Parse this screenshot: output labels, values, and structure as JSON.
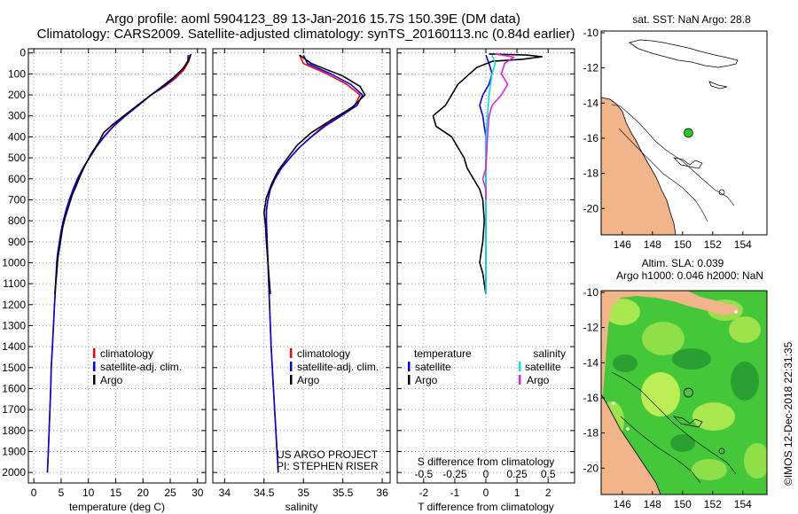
{
  "header": {
    "title_line1": "Argo profile: aoml 5904123_89 13-Jan-2016 15.7S 150.39E (DM data)",
    "title_line2": "Climatology: CARS2009. Satellite-adjusted climatology: synTS_20160113.nc (0.84d earlier)"
  },
  "footer": {
    "credit_line1": "US ARGO PROJECT",
    "credit_line2": "PI: STEPHEN RISER",
    "stamp": "©IMOS 12-Dec-2018 22:31:35"
  },
  "colors": {
    "climatology": "#ff0000",
    "satellite": "#0000ff",
    "argo": "#000000",
    "salinity_satellite": "#00e5e5",
    "salinity_argo": "#e020e0",
    "land": "#f2b48a",
    "dots": "#9a9a9a"
  },
  "legend_profiles": {
    "climatology": "climatology",
    "satellite": "satellite-adj. clim.",
    "argo": "Argo"
  },
  "legend_diff": {
    "temperature_head": "temperature",
    "salinity_head": "salinity",
    "satellite": "satellite",
    "argo": "Argo"
  },
  "maps": {
    "sst_title": "sat. SST: NaN Argo: 28.8",
    "sla_title1": "Altim. SLA: 0.039",
    "sla_title2": "Argo h1000: 0.046 h2000: NaN",
    "x_ticks": [
      146,
      148,
      150,
      152,
      154
    ],
    "y_ticks": [
      -10,
      -12,
      -14,
      -16,
      -18,
      -20
    ],
    "xlim": [
      144.6,
      155.6
    ],
    "ylim": [
      -21.5,
      -9.9
    ],
    "float_position": [
      150.39,
      -15.7
    ]
  },
  "chart_data": [
    {
      "type": "line",
      "xlabel": "temperature (deg C)",
      "ylabel": "",
      "xlim": [
        -1,
        31.5
      ],
      "ylim": [
        2050,
        -20
      ],
      "x_ticks": [
        0,
        5,
        10,
        15,
        20,
        25,
        30
      ],
      "y_ticks": [
        0,
        100,
        200,
        300,
        400,
        500,
        600,
        700,
        800,
        900,
        1000,
        1100,
        1200,
        1300,
        1400,
        1500,
        1600,
        1700,
        1800,
        1900,
        2000
      ],
      "grid": true,
      "series": [
        {
          "name": "climatology",
          "color": "#ff0000",
          "points": [
            [
              28.6,
              10
            ],
            [
              28.4,
              40
            ],
            [
              27.5,
              80
            ],
            [
              26,
              120
            ],
            [
              24,
              160
            ],
            [
              21.5,
              200
            ],
            [
              19,
              250
            ],
            [
              16.5,
              300
            ],
            [
              14.5,
              350
            ],
            [
              12.8,
              400
            ],
            [
              11.4,
              450
            ],
            [
              10.2,
              500
            ],
            [
              9,
              550
            ],
            [
              8,
              600
            ],
            [
              7.2,
              650
            ],
            [
              6.5,
              700
            ],
            [
              5.9,
              750
            ],
            [
              5.4,
              800
            ],
            [
              5,
              850
            ],
            [
              4.7,
              900
            ],
            [
              4.4,
              950
            ],
            [
              4.2,
              1000
            ],
            [
              4,
              1100
            ],
            [
              3.8,
              1200
            ],
            [
              3.6,
              1300
            ],
            [
              3.4,
              1400
            ],
            [
              3.2,
              1500
            ],
            [
              3.1,
              1600
            ],
            [
              2.95,
              1700
            ],
            [
              2.8,
              1800
            ],
            [
              2.65,
              1900
            ],
            [
              2.5,
              2000
            ]
          ]
        },
        {
          "name": "satellite-adj. clim.",
          "color": "#0000ff",
          "points": [
            [
              28.3,
              10
            ],
            [
              28.2,
              40
            ],
            [
              27.2,
              80
            ],
            [
              25.7,
              120
            ],
            [
              23.8,
              160
            ],
            [
              21.5,
              200
            ],
            [
              19.2,
              250
            ],
            [
              16.8,
              300
            ],
            [
              14.6,
              350
            ],
            [
              12.9,
              400
            ],
            [
              11.4,
              450
            ],
            [
              10.2,
              500
            ],
            [
              9,
              550
            ],
            [
              8,
              600
            ],
            [
              7.2,
              650
            ],
            [
              6.5,
              700
            ],
            [
              5.9,
              750
            ],
            [
              5.4,
              800
            ],
            [
              5,
              850
            ],
            [
              4.7,
              900
            ],
            [
              4.4,
              950
            ],
            [
              4.2,
              1000
            ],
            [
              4,
              1100
            ],
            [
              3.8,
              1200
            ],
            [
              3.6,
              1300
            ],
            [
              3.4,
              1400
            ],
            [
              3.2,
              1500
            ],
            [
              3.1,
              1600
            ],
            [
              2.95,
              1700
            ],
            [
              2.8,
              1800
            ],
            [
              2.65,
              1900
            ],
            [
              2.5,
              2000
            ]
          ]
        },
        {
          "name": "Argo",
          "color": "#000000",
          "points": [
            [
              28.8,
              5
            ],
            [
              28.5,
              30
            ],
            [
              27.5,
              70
            ],
            [
              25.5,
              120
            ],
            [
              23,
              170
            ],
            [
              20.5,
              220
            ],
            [
              17.5,
              280
            ],
            [
              14.5,
              340
            ],
            [
              12.8,
              380
            ],
            [
              11.8,
              430
            ],
            [
              10.5,
              480
            ],
            [
              9.5,
              530
            ],
            [
              8.6,
              580
            ],
            [
              7.8,
              630
            ],
            [
              7,
              680
            ],
            [
              6.4,
              730
            ],
            [
              5.8,
              780
            ],
            [
              5.3,
              830
            ],
            [
              5,
              880
            ],
            [
              4.7,
              930
            ],
            [
              4.4,
              980
            ],
            [
              4.2,
              1050
            ],
            [
              4,
              1100
            ],
            [
              3.85,
              1150
            ]
          ]
        }
      ]
    },
    {
      "type": "line",
      "xlabel": "salinity",
      "ylabel": "",
      "xlim": [
        33.85,
        36.1
      ],
      "ylim": [
        2050,
        -20
      ],
      "x_ticks": [
        34,
        34.5,
        35,
        35.5,
        36
      ],
      "y_ticks": [
        0,
        100,
        200,
        300,
        400,
        500,
        600,
        700,
        800,
        900,
        1000,
        1100,
        1200,
        1300,
        1400,
        1500,
        1600,
        1700,
        1800,
        1900,
        2000
      ],
      "grid": true,
      "series": [
        {
          "name": "climatology",
          "color": "#ff0000",
          "points": [
            [
              34.95,
              10
            ],
            [
              35.0,
              50
            ],
            [
              35.3,
              100
            ],
            [
              35.55,
              150
            ],
            [
              35.72,
              200
            ],
            [
              35.65,
              250
            ],
            [
              35.45,
              300
            ],
            [
              35.25,
              350
            ],
            [
              35.1,
              400
            ],
            [
              34.95,
              450
            ],
            [
              34.83,
              500
            ],
            [
              34.72,
              550
            ],
            [
              34.64,
              600
            ],
            [
              34.58,
              650
            ],
            [
              34.55,
              700
            ],
            [
              34.53,
              750
            ],
            [
              34.53,
              800
            ],
            [
              34.54,
              900
            ],
            [
              34.55,
              1000
            ],
            [
              34.57,
              1200
            ],
            [
              34.59,
              1400
            ],
            [
              34.62,
              1600
            ],
            [
              34.65,
              1800
            ],
            [
              34.68,
              2000
            ]
          ]
        },
        {
          "name": "satellite-adj. clim.",
          "color": "#0000ff",
          "points": [
            [
              35.0,
              10
            ],
            [
              35.05,
              50
            ],
            [
              35.35,
              100
            ],
            [
              35.6,
              150
            ],
            [
              35.75,
              200
            ],
            [
              35.68,
              250
            ],
            [
              35.48,
              300
            ],
            [
              35.27,
              350
            ],
            [
              35.1,
              400
            ],
            [
              34.95,
              450
            ],
            [
              34.83,
              500
            ],
            [
              34.72,
              550
            ],
            [
              34.64,
              600
            ],
            [
              34.58,
              650
            ],
            [
              34.55,
              700
            ],
            [
              34.53,
              750
            ],
            [
              34.53,
              800
            ],
            [
              34.54,
              900
            ],
            [
              34.55,
              1000
            ],
            [
              34.57,
              1200
            ],
            [
              34.59,
              1400
            ],
            [
              34.62,
              1600
            ],
            [
              34.65,
              1800
            ],
            [
              34.68,
              2000
            ]
          ]
        },
        {
          "name": "Argo",
          "color": "#000000",
          "points": [
            [
              34.95,
              10
            ],
            [
              35.1,
              50
            ],
            [
              35.5,
              110
            ],
            [
              35.72,
              160
            ],
            [
              35.78,
              200
            ],
            [
              35.62,
              260
            ],
            [
              35.35,
              320
            ],
            [
              35.1,
              380
            ],
            [
              34.92,
              440
            ],
            [
              34.8,
              500
            ],
            [
              34.68,
              560
            ],
            [
              34.6,
              620
            ],
            [
              34.53,
              690
            ],
            [
              34.5,
              760
            ],
            [
              34.52,
              830
            ],
            [
              34.53,
              900
            ],
            [
              34.55,
              1000
            ],
            [
              34.57,
              1100
            ],
            [
              34.58,
              1150
            ]
          ]
        }
      ]
    },
    {
      "type": "line",
      "xlabel": "T difference from climatology",
      "x2label": "S difference from climatology",
      "ylabel": "",
      "xlim": [
        -2.85,
        2.85
      ],
      "ylim": [
        2050,
        -20
      ],
      "x_ticks": [
        -2,
        -1,
        0,
        1,
        2
      ],
      "x_tick_labels": [
        "-2",
        "-1",
        "0",
        "1",
        "2"
      ],
      "x2_ticks": [
        -2,
        -1,
        0,
        1,
        2
      ],
      "x2_tick_labels": [
        "-0.5",
        "-0.25",
        "0",
        "0.25",
        "0.5"
      ],
      "y_ticks": [
        0,
        100,
        200,
        300,
        400,
        500,
        600,
        700,
        800,
        900,
        1000,
        1100,
        1200,
        1300,
        1400,
        1500,
        1600,
        1700,
        1800,
        1900,
        2000
      ],
      "grid": true,
      "series": [
        {
          "name": "temperature satellite",
          "color": "#0000ff",
          "points": [
            [
              0,
              10
            ],
            [
              0.1,
              50
            ],
            [
              0.2,
              100
            ],
            [
              0.1,
              150
            ],
            [
              -0.1,
              200
            ],
            [
              -0.2,
              250
            ],
            [
              -0.1,
              300
            ],
            [
              -0.05,
              350
            ],
            [
              0,
              400
            ],
            [
              0,
              500
            ],
            [
              0,
              600
            ],
            [
              0,
              700
            ],
            [
              0,
              800
            ],
            [
              0,
              900
            ],
            [
              0,
              1000
            ],
            [
              0,
              1100
            ],
            [
              0,
              1150
            ]
          ]
        },
        {
          "name": "temperature Argo",
          "color": "#000000",
          "points": [
            [
              0.1,
              5
            ],
            [
              1.3,
              10
            ],
            [
              1.8,
              18
            ],
            [
              1.2,
              30
            ],
            [
              0.2,
              40
            ],
            [
              -0.3,
              70
            ],
            [
              -0.9,
              150
            ],
            [
              -1.3,
              250
            ],
            [
              -1.7,
              300
            ],
            [
              -1.6,
              350
            ],
            [
              -1.1,
              400
            ],
            [
              -0.9,
              450
            ],
            [
              -0.7,
              500
            ],
            [
              -0.6,
              550
            ],
            [
              -0.4,
              600
            ],
            [
              -0.2,
              650
            ],
            [
              -0.1,
              700
            ],
            [
              -0.05,
              800
            ],
            [
              -0.1,
              900
            ],
            [
              -0.15,
              950
            ],
            [
              -0.2,
              1000
            ],
            [
              -0.1,
              1050
            ],
            [
              -0.05,
              1100
            ],
            [
              0,
              1150
            ]
          ]
        },
        {
          "name": "salinity satellite",
          "color": "#00e5e5",
          "points": [
            [
              0.2,
              10
            ],
            [
              0.3,
              50
            ],
            [
              0.2,
              100
            ],
            [
              0.1,
              200
            ],
            [
              0.05,
              300
            ],
            [
              0,
              400
            ],
            [
              0,
              600
            ],
            [
              0,
              800
            ],
            [
              0,
              1000
            ],
            [
              0,
              1150
            ]
          ]
        },
        {
          "name": "salinity Argo",
          "color": "#e020e0",
          "points": [
            [
              0.3,
              5
            ],
            [
              0.9,
              20
            ],
            [
              0.6,
              50
            ],
            [
              0.5,
              100
            ],
            [
              0.7,
              150
            ],
            [
              0.5,
              200
            ],
            [
              0.2,
              250
            ],
            [
              0.1,
              300
            ],
            [
              0.05,
              400
            ],
            [
              0,
              550
            ],
            [
              -0.1,
              600
            ],
            [
              0,
              650
            ],
            [
              0,
              700
            ]
          ]
        }
      ]
    }
  ]
}
